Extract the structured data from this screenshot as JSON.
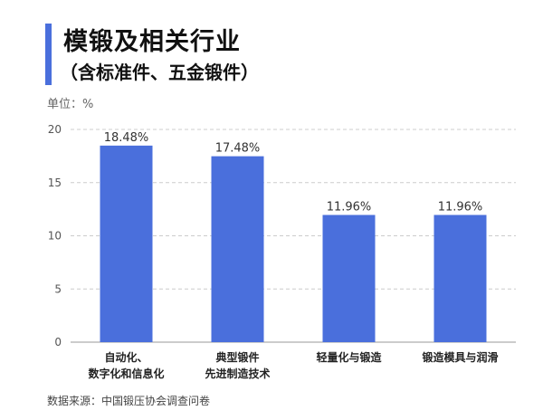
{
  "header": {
    "title": "模锻及相关行业",
    "subtitle": "（含标准件、五金锻件）",
    "unit": "单位：%"
  },
  "footer": {
    "source": "数据来源：中国锻压协会调查问卷"
  },
  "colors": {
    "accent": "#4a6fdc",
    "bar": "#4a6fdc",
    "grid": "#cccccc",
    "text": "#222222"
  },
  "chart_data": {
    "type": "bar",
    "title": "模锻及相关行业",
    "subtitle": "（含标准件、五金锻件）",
    "categories": [
      [
        "自动化、",
        "数字化和信息化"
      ],
      [
        "典型锻件",
        "先进制造技术"
      ],
      [
        "轻量化与锻造"
      ],
      [
        "锻造模具与润滑"
      ]
    ],
    "values": [
      18.48,
      17.48,
      11.96,
      11.96
    ],
    "value_labels": [
      "18.48%",
      "17.48%",
      "11.96%",
      "11.96%"
    ],
    "ylim": [
      0,
      20
    ],
    "yticks": [
      0,
      5,
      10,
      15,
      20
    ],
    "ylabel": "单位：%",
    "grid": true,
    "legend": "none"
  }
}
